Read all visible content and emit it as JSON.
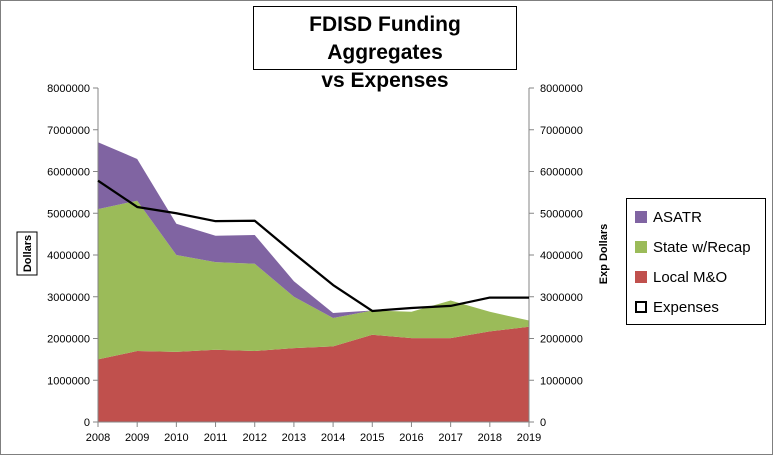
{
  "chart_data": {
    "type": "area",
    "title": "FDISD Funding Aggregates",
    "subtitle": "vs Expenses",
    "y_left_label": "Dollars",
    "y_right_label": "Exp Dollars",
    "x": [
      "2008",
      "2009",
      "2010",
      "2011",
      "2012",
      "2013",
      "2014",
      "2015",
      "2016",
      "2017",
      "2018",
      "2019"
    ],
    "y_ticks": [
      "0",
      "1000000",
      "2000000",
      "3000000",
      "4000000",
      "5000000",
      "6000000",
      "7000000",
      "8000000"
    ],
    "ylim": [
      0,
      8000000
    ],
    "stacked": true,
    "grid": false,
    "legend_position": "right",
    "series": [
      {
        "name": "Local M&O",
        "type": "area",
        "color": "#c0504d",
        "values": [
          1500000,
          1700000,
          1680000,
          1730000,
          1700000,
          1770000,
          1810000,
          2090000,
          2010000,
          2010000,
          2170000,
          2280000
        ]
      },
      {
        "name": "State w/Recap",
        "type": "area",
        "color": "#9bbb59",
        "values": [
          3600000,
          3600000,
          2320000,
          2100000,
          2090000,
          1230000,
          680000,
          580000,
          630000,
          900000,
          470000,
          150000
        ]
      },
      {
        "name": "ASATR",
        "type": "area",
        "color": "#8064a2",
        "values": [
          1600000,
          1000000,
          750000,
          630000,
          690000,
          370000,
          120000,
          0,
          0,
          0,
          0,
          0
        ]
      },
      {
        "name": "Expenses",
        "type": "line",
        "color": "#000000",
        "values": [
          5780000,
          5150000,
          5000000,
          4810000,
          4820000,
          4040000,
          3280000,
          2660000,
          2730000,
          2780000,
          2980000,
          2980000
        ]
      }
    ]
  },
  "legend": {
    "items": [
      {
        "label": "ASATR",
        "color": "#8064a2"
      },
      {
        "label": "State w/Recap",
        "color": "#9bbb59"
      },
      {
        "label": "Local M&O",
        "color": "#c0504d"
      },
      {
        "label": "Expenses",
        "color": "#000000"
      }
    ]
  }
}
